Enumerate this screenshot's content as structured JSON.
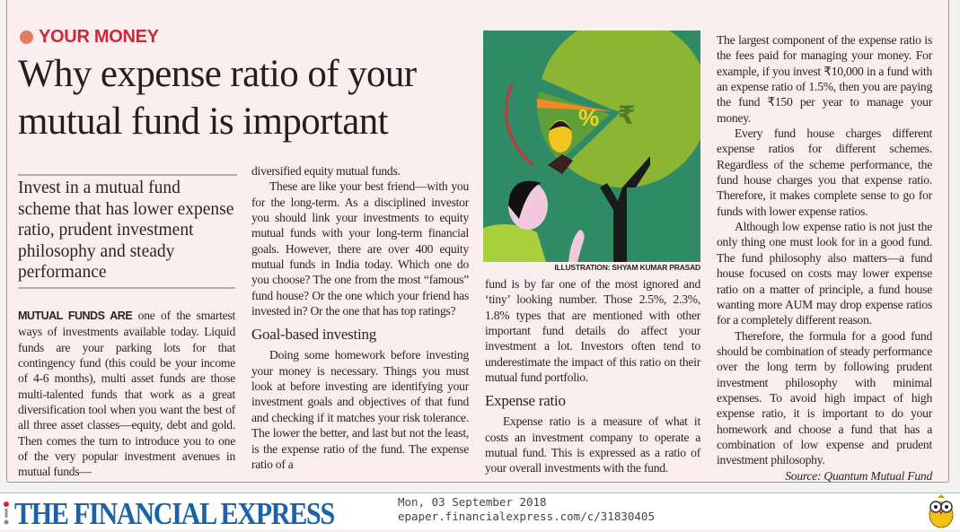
{
  "article": {
    "kicker": "YOUR MONEY",
    "headline": "Why expense ratio of your mutual fund is important",
    "standfirst": "Invest in a mutual fund scheme that has lower expense ratio, prudent investment philosophy and steady performance",
    "col1": {
      "lead": "MUTUAL FUNDS ARE",
      "p1": " one of the smartest ways of investments available today. Liquid funds are your parking lots for that contingency fund (this could be your income of 4-6 months), multi asset funds are those multi-talented funds that work as a great diversification tool when you want the best of all three asset classes—equity, debt and gold. Then comes the turn to introduce you to one of the very popular investment avenues in mutual funds—"
    },
    "col2": {
      "p1": "diversified equity mutual funds.",
      "p2": "These are like your best friend—with you for the long-term. As a disciplined investor you should link your investments to equity mutual funds with your long-term financial goals. However, there are over 400 equity mutual funds in India today. Which one do you choose? The one from the most “famous” fund house? Or the one which your friend has invested in? Or the one that has top ratings?",
      "subhead": "Goal-based investing",
      "p3": "Doing some homework before investing your money is necessary. Things you must look at before investing are identifying your investment goals and objectives of that fund and checking if it matches your risk tolerance. The lower the better, and last but not the least, is the expense ratio of the fund. The expense ratio of a"
    },
    "col3": {
      "p1": "fund is by far one of the most ignored and ‘tiny’ looking number. Those 2.5%, 2.3%, 1.8% types that are mentioned with other important fund details do affect your investment a lot. Investors often tend to underestimate the impact of this ratio on their mutual fund portfolio.",
      "subhead": "Expense ratio",
      "p2": "Expense ratio is a measure of what it costs an investment company to operate a mutual fund. This is expressed as a ratio of your overall investments with the fund."
    },
    "col4": {
      "p1": "The largest component of the expense ratio is the fees paid for managing your money. For example, if you invest ₹10,000 in a fund with an expense ratio of 1.5%, then you are paying the fund ₹150 per year to manage your money.",
      "p2": "Every fund house charges different expense ratios for different schemes. Regardless of the scheme performance, the fund house charges you that expense ratio. Therefore, it makes complete sense to go for funds with lower expense ratios.",
      "p3": "Although low expense ratio is not just the only thing one must look for in a good fund. The fund philosophy also matters—a fund house focused on costs may lower expense ratio on a matter of principle, a fund house wanting more AUM may drop expense ratios for a completely different reason.",
      "p4": "Therefore, the formula for a good fund should be combination of steady performance over the long term by following prudent investment philosophy with minimal expenses. To avoid high impact of high expense ratio, it is important to do your homework and choose a fund that has a combination of low expense and prudent investment philosophy.",
      "source": "Source: Quantum Mutual Fund"
    },
    "illustration": {
      "credit": "ILLUSTRATION: SHYAM KUMAR PRASAD",
      "percent_glyph": "%",
      "rupee_glyph": "₹"
    }
  },
  "footer": {
    "logo": "THE FINANCIAL EXPRESS",
    "date": "Mon, 03 September 2018",
    "url": "epaper.financialexpress.com/c/31830405",
    "owl_icon": "owl-mascot-icon"
  },
  "colors": {
    "kicker": "#d0283a",
    "logo": "#1b63a8",
    "paper": "#fbeeee",
    "illustration_bg": "#2f8a66",
    "pie": "#8cb534"
  }
}
